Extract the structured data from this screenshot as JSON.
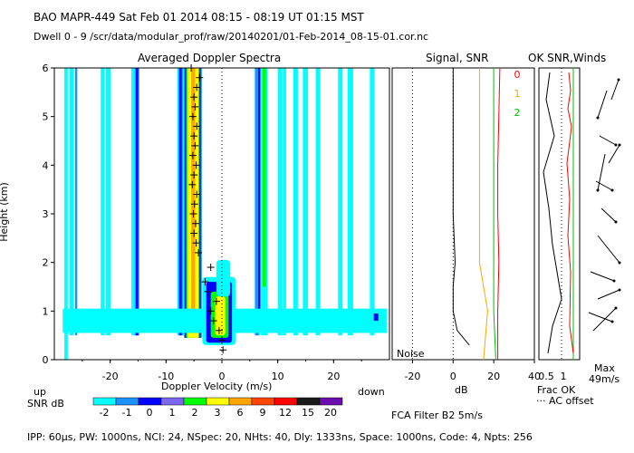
{
  "header": {
    "line1": "BAO  MAPR-449  Sat Feb 01 2014 08:15 - 08:19 UT 01:15 MST",
    "line2": "Dwell  0 - 9   /scr/data/modular_prof/raw/20140201/01-Feb-2014_08-15-01.cor.nc"
  },
  "footer": {
    "params": "IPP: 60μs,  PW: 1000ns,  NCI: 24,  NSpec: 20, NHts: 40,  Dly: 1333ns,  Space: 1000ns,  Code: 4,  Npts: 256"
  },
  "colors": {
    "cyan": "#00ffff",
    "light_blue": "#1e90ff",
    "blue": "#0000ff",
    "purple": "#7b68ee",
    "green": "#00ff00",
    "yellow": "#ffff00",
    "orange": "#ffa500",
    "red": "#ff0000",
    "dark": "#1a1a1a",
    "violet": "#6a0dad"
  },
  "chart_data": [
    {
      "type": "heatmap",
      "title": "Averaged Doppler Spectra",
      "xlabel": "Doppler Velocity (m/s)",
      "ylabel": "Height (km)",
      "xlim": [
        -30,
        30
      ],
      "ylim": [
        0,
        6
      ],
      "xticks": [
        -20,
        -10,
        0,
        10,
        20
      ],
      "yticks": [
        0,
        1,
        2,
        3,
        4,
        5,
        6
      ],
      "left_note": "up",
      "right_note": "down",
      "colorbar": {
        "label": "SNR dB",
        "ticks": [
          "-2",
          "-1",
          "0",
          "1",
          "2",
          "3",
          "6",
          "9",
          "12",
          "15",
          "20"
        ],
        "colors": [
          "#00ffff",
          "#1e90ff",
          "#0000ff",
          "#7b68ee",
          "#00ff00",
          "#ffff00",
          "#ffa500",
          "#ff4500",
          "#ff0000",
          "#1a1a1a",
          "#6a0dad"
        ]
      },
      "mean_velocity_km_ms": [
        [
          -5.5,
          6.0
        ],
        [
          -4.0,
          5.8
        ],
        [
          -4.5,
          5.6
        ],
        [
          -5.0,
          5.4
        ],
        [
          -4.8,
          5.2
        ],
        [
          -5.2,
          5.0
        ],
        [
          -4.5,
          4.8
        ],
        [
          -5.0,
          4.6
        ],
        [
          -4.8,
          4.4
        ],
        [
          -5.2,
          4.2
        ],
        [
          -4.6,
          4.0
        ],
        [
          -5.0,
          3.8
        ],
        [
          -5.3,
          3.6
        ],
        [
          -4.5,
          3.4
        ],
        [
          -4.9,
          3.2
        ],
        [
          -5.1,
          3.0
        ],
        [
          -4.7,
          2.8
        ],
        [
          -5.0,
          2.6
        ],
        [
          -4.6,
          2.4
        ],
        [
          -4.2,
          2.2
        ],
        [
          -2.0,
          1.9
        ],
        [
          -3.0,
          1.6
        ],
        [
          -2.5,
          1.4
        ],
        [
          -1.0,
          1.2
        ],
        [
          -2.0,
          1.0
        ],
        [
          -1.5,
          0.8
        ],
        [
          -0.5,
          0.6
        ],
        [
          0.0,
          0.4
        ],
        [
          0.2,
          0.2
        ]
      ]
    },
    {
      "type": "line",
      "title": "Signal, SNR",
      "xlabel": "dB",
      "xlim": [
        -30,
        40
      ],
      "ylim": [
        0,
        6
      ],
      "xticks": [
        -20,
        0,
        20,
        40
      ],
      "bottom_label": "Noise",
      "series": [
        {
          "name": "0",
          "color": "#ff0000",
          "x": [
            22,
            22,
            22.5,
            22,
            22,
            23
          ],
          "y": [
            0,
            1,
            2,
            3,
            4,
            6
          ]
        },
        {
          "name": "1",
          "color": "#ffa500",
          "x": [
            15,
            17,
            13,
            13,
            13,
            13
          ],
          "y": [
            0,
            1,
            2,
            3,
            4,
            6
          ]
        },
        {
          "name": "2",
          "color": "#00c000",
          "x": [
            21,
            20,
            20,
            20,
            20,
            20
          ],
          "y": [
            0,
            1,
            2,
            3,
            4,
            6
          ]
        }
      ]
    },
    {
      "type": "line",
      "title": "OK SNR,Winds",
      "xlabel_left": "Frac OK",
      "xlabel_note": "··· AC offset",
      "xlim": [
        0,
        1.2
      ],
      "ylim": [
        0,
        6
      ],
      "xticks": [
        "0.5",
        "1"
      ],
      "wind_max_label": "Max",
      "wind_max_value": "49m/s",
      "wind_panel_title": "Winds"
    }
  ],
  "fca_label": "FCA Filter B2  5m/s"
}
